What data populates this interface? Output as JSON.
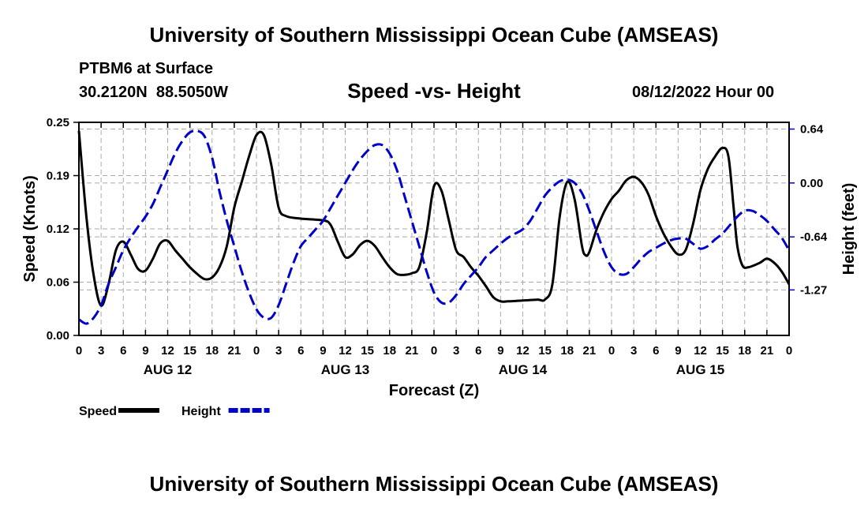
{
  "header": {
    "title": "University of Southern Mississippi Ocean Cube (AMSEAS)",
    "station": "PTBM6 at Surface",
    "coords": "30.2120N  88.5050W",
    "chart_title": "Speed -vs- Height",
    "run": "08/12/2022 Hour 00"
  },
  "footer": {
    "title": "University of Southern Mississippi Ocean Cube (AMSEAS)"
  },
  "colors": {
    "speed": "#000000",
    "height": "#0000cc",
    "grid": "#aaaaaa"
  },
  "chart_data": {
    "type": "line",
    "title": "Speed -vs- Height",
    "xlabel": "Forecast (Z)",
    "ylabel": "Speed (Knots)",
    "y2label": "Height (feet)",
    "x_ticks": [
      "0",
      "3",
      "6",
      "9",
      "12",
      "15",
      "18",
      "21",
      "0",
      "3",
      "6",
      "9",
      "12",
      "15",
      "18",
      "21",
      "0",
      "3",
      "6",
      "9",
      "12",
      "15",
      "18",
      "21",
      "0",
      "3",
      "6",
      "9",
      "12",
      "15",
      "18",
      "21",
      "0"
    ],
    "day_labels": [
      {
        "label": "AUG 12",
        "hour": 12
      },
      {
        "label": "AUG 13",
        "hour": 36
      },
      {
        "label": "AUG 14",
        "hour": 60
      },
      {
        "label": "AUG 15",
        "hour": 84
      }
    ],
    "xlim": [
      0,
      96
    ],
    "ylim": [
      0,
      0.25
    ],
    "y_ticks": [
      "0.00",
      "0.06",
      "0.12",
      "0.19",
      "0.25"
    ],
    "y_tick_values": [
      0,
      0.0625,
      0.125,
      0.1875,
      0.25
    ],
    "y2lim": [
      -1.81,
      0.72
    ],
    "y2_ticks": [
      "0.64",
      "0.00",
      "-0.64",
      "-1.27"
    ],
    "y2_tick_values": [
      0.64,
      0.0,
      -0.64,
      -1.27
    ],
    "legend": [
      {
        "name": "Speed",
        "style": "solid"
      },
      {
        "name": "Height",
        "style": "dashed"
      }
    ],
    "grid": true,
    "series": [
      {
        "name": "Speed",
        "axis": "left",
        "style": "solid",
        "points": [
          [
            0,
            0.24
          ],
          [
            1,
            0.14
          ],
          [
            2,
            0.07
          ],
          [
            3,
            0.035
          ],
          [
            4,
            0.06
          ],
          [
            5,
            0.1
          ],
          [
            6,
            0.11
          ],
          [
            7,
            0.095
          ],
          [
            8,
            0.078
          ],
          [
            9,
            0.076
          ],
          [
            10,
            0.09
          ],
          [
            11,
            0.108
          ],
          [
            12,
            0.111
          ],
          [
            13,
            0.1
          ],
          [
            14,
            0.09
          ],
          [
            15,
            0.08
          ],
          [
            16,
            0.072
          ],
          [
            17,
            0.066
          ],
          [
            18,
            0.068
          ],
          [
            19,
            0.08
          ],
          [
            20,
            0.105
          ],
          [
            21,
            0.15
          ],
          [
            22,
            0.18
          ],
          [
            23,
            0.21
          ],
          [
            24,
            0.235
          ],
          [
            25,
            0.235
          ],
          [
            26,
            0.2
          ],
          [
            27,
            0.15
          ],
          [
            28,
            0.14
          ],
          [
            30,
            0.137
          ],
          [
            33,
            0.135
          ],
          [
            34,
            0.13
          ],
          [
            35,
            0.11
          ],
          [
            36,
            0.092
          ],
          [
            37,
            0.095
          ],
          [
            38,
            0.106
          ],
          [
            39,
            0.111
          ],
          [
            40,
            0.105
          ],
          [
            41,
            0.092
          ],
          [
            42,
            0.08
          ],
          [
            43,
            0.072
          ],
          [
            44,
            0.071
          ],
          [
            45,
            0.073
          ],
          [
            46,
            0.08
          ],
          [
            47,
            0.12
          ],
          [
            48,
            0.175
          ],
          [
            49,
            0.17
          ],
          [
            50,
            0.135
          ],
          [
            51,
            0.1
          ],
          [
            52,
            0.092
          ],
          [
            53,
            0.08
          ],
          [
            54,
            0.07
          ],
          [
            55,
            0.058
          ],
          [
            56,
            0.045
          ],
          [
            57,
            0.04
          ],
          [
            58,
            0.04
          ],
          [
            60,
            0.041
          ],
          [
            62,
            0.042
          ],
          [
            63,
            0.042
          ],
          [
            64,
            0.06
          ],
          [
            65,
            0.14
          ],
          [
            66,
            0.18
          ],
          [
            67,
            0.16
          ],
          [
            68,
            0.105
          ],
          [
            68.5,
            0.094
          ],
          [
            69,
            0.098
          ],
          [
            70,
            0.125
          ],
          [
            71,
            0.145
          ],
          [
            72,
            0.16
          ],
          [
            73,
            0.17
          ],
          [
            74,
            0.182
          ],
          [
            75,
            0.186
          ],
          [
            76,
            0.18
          ],
          [
            77,
            0.165
          ],
          [
            78,
            0.14
          ],
          [
            79,
            0.12
          ],
          [
            80,
            0.105
          ],
          [
            81,
            0.095
          ],
          [
            82,
            0.1
          ],
          [
            83,
            0.13
          ],
          [
            84,
            0.17
          ],
          [
            85,
            0.195
          ],
          [
            86,
            0.21
          ],
          [
            87,
            0.22
          ],
          [
            87.8,
            0.21
          ],
          [
            88.5,
            0.15
          ],
          [
            89,
            0.105
          ],
          [
            89.7,
            0.082
          ],
          [
            90.5,
            0.08
          ],
          [
            92,
            0.085
          ],
          [
            93,
            0.09
          ],
          [
            94,
            0.085
          ],
          [
            95,
            0.075
          ],
          [
            96,
            0.06
          ]
        ]
      },
      {
        "name": "Height",
        "axis": "right",
        "style": "dashed",
        "points": [
          [
            0,
            -1.62
          ],
          [
            1,
            -1.67
          ],
          [
            2,
            -1.6
          ],
          [
            3,
            -1.45
          ],
          [
            4,
            -1.2
          ],
          [
            5,
            -1.0
          ],
          [
            6,
            -0.8
          ],
          [
            7,
            -0.65
          ],
          [
            8,
            -0.52
          ],
          [
            9,
            -0.4
          ],
          [
            10,
            -0.25
          ],
          [
            11,
            -0.05
          ],
          [
            12,
            0.15
          ],
          [
            13,
            0.35
          ],
          [
            14,
            0.5
          ],
          [
            15,
            0.6
          ],
          [
            16,
            0.62
          ],
          [
            17,
            0.55
          ],
          [
            18,
            0.3
          ],
          [
            19,
            -0.1
          ],
          [
            20,
            -0.45
          ],
          [
            21,
            -0.75
          ],
          [
            22,
            -1.05
          ],
          [
            23,
            -1.3
          ],
          [
            24,
            -1.5
          ],
          [
            25,
            -1.6
          ],
          [
            26,
            -1.6
          ],
          [
            27,
            -1.45
          ],
          [
            28,
            -1.2
          ],
          [
            29,
            -0.95
          ],
          [
            30,
            -0.75
          ],
          [
            31,
            -0.65
          ],
          [
            32,
            -0.55
          ],
          [
            33,
            -0.45
          ],
          [
            34,
            -0.3
          ],
          [
            35,
            -0.15
          ],
          [
            36,
            0.0
          ],
          [
            37,
            0.15
          ],
          [
            38,
            0.28
          ],
          [
            39,
            0.38
          ],
          [
            40,
            0.45
          ],
          [
            41,
            0.45
          ],
          [
            42,
            0.35
          ],
          [
            43,
            0.15
          ],
          [
            44,
            -0.15
          ],
          [
            45,
            -0.45
          ],
          [
            46,
            -0.75
          ],
          [
            47,
            -1.05
          ],
          [
            48,
            -1.3
          ],
          [
            49,
            -1.42
          ],
          [
            50,
            -1.42
          ],
          [
            51,
            -1.33
          ],
          [
            52,
            -1.2
          ],
          [
            53,
            -1.1
          ],
          [
            54,
            -1.0
          ],
          [
            55,
            -0.88
          ],
          [
            56,
            -0.8
          ],
          [
            57,
            -0.72
          ],
          [
            58,
            -0.65
          ],
          [
            59,
            -0.6
          ],
          [
            60,
            -0.55
          ],
          [
            61,
            -0.45
          ],
          [
            62,
            -0.3
          ],
          [
            63,
            -0.15
          ],
          [
            64,
            -0.05
          ],
          [
            65,
            0.02
          ],
          [
            66,
            0.04
          ],
          [
            67,
            0.0
          ],
          [
            68,
            -0.12
          ],
          [
            69,
            -0.33
          ],
          [
            70,
            -0.58
          ],
          [
            71,
            -0.82
          ],
          [
            72,
            -1.0
          ],
          [
            73,
            -1.08
          ],
          [
            74,
            -1.08
          ],
          [
            75,
            -1.0
          ],
          [
            76,
            -0.9
          ],
          [
            77,
            -0.82
          ],
          [
            78,
            -0.77
          ],
          [
            79,
            -0.72
          ],
          [
            80,
            -0.68
          ],
          [
            81,
            -0.66
          ],
          [
            82,
            -0.66
          ],
          [
            83,
            -0.72
          ],
          [
            84,
            -0.78
          ],
          [
            85,
            -0.75
          ],
          [
            86,
            -0.67
          ],
          [
            87,
            -0.6
          ],
          [
            88,
            -0.5
          ],
          [
            89,
            -0.4
          ],
          [
            90,
            -0.33
          ],
          [
            91,
            -0.33
          ],
          [
            92,
            -0.38
          ],
          [
            93,
            -0.45
          ],
          [
            94,
            -0.55
          ],
          [
            95,
            -0.65
          ],
          [
            96,
            -0.8
          ]
        ]
      }
    ]
  }
}
